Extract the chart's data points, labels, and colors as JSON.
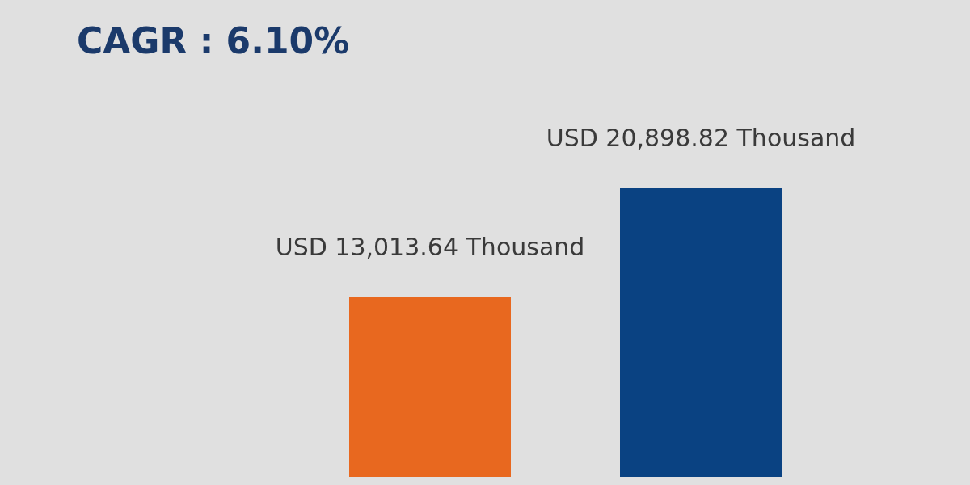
{
  "chart_data": {
    "type": "bar",
    "title": "CAGR : 6.10%",
    "categories": [
      null,
      null
    ],
    "values": [
      13013.64,
      20898.82
    ],
    "colors": [
      "#e8681f",
      "#0a4282"
    ],
    "value_labels": [
      "USD 13,013.64 Thousand",
      "USD 20,898.82 Thousand"
    ],
    "tick_labels": false
  }
}
